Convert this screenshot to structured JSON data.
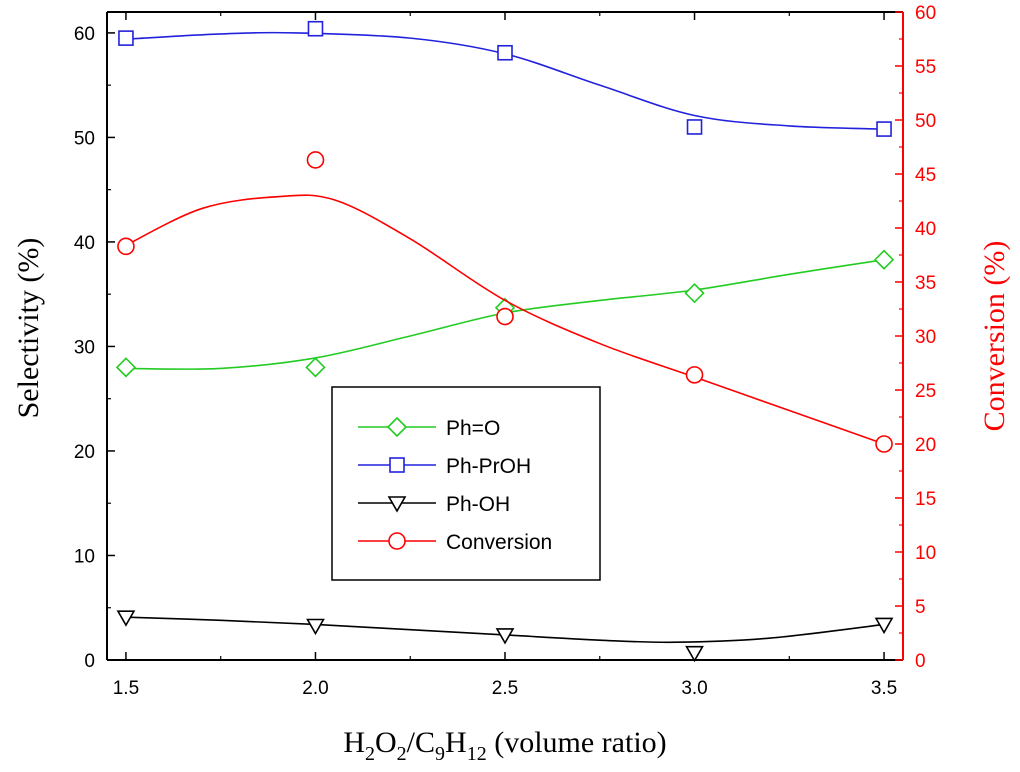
{
  "chart_data": {
    "type": "line",
    "x": [
      1.5,
      2.0,
      2.5,
      3.0,
      3.5
    ],
    "x_ticks": [
      "1.5",
      "2.0",
      "2.5",
      "3.0",
      "3.5"
    ],
    "xlim": [
      1.45,
      3.55
    ],
    "xlabel": {
      "parts": [
        {
          "t": "H",
          "sub": false
        },
        {
          "t": "2",
          "sub": true
        },
        {
          "t": "O",
          "sub": false
        },
        {
          "t": "2",
          "sub": true
        },
        {
          "t": "/C",
          "sub": false
        },
        {
          "t": "9",
          "sub": true
        },
        {
          "t": "H",
          "sub": false
        },
        {
          "t": "12",
          "sub": true
        },
        {
          "t": "  (volume ratio)",
          "sub": false
        }
      ]
    },
    "y_left": {
      "label": "Selectivity (%)",
      "ylim": [
        0,
        62
      ],
      "ticks": [
        0,
        10,
        20,
        30,
        40,
        50,
        60
      ],
      "color": "#000000"
    },
    "y_right": {
      "label": "Conversion (%)",
      "ylim": [
        0,
        60
      ],
      "ticks": [
        0,
        5,
        10,
        15,
        20,
        25,
        30,
        35,
        40,
        45,
        50,
        55,
        60
      ],
      "color": "#ff0000"
    },
    "series": [
      {
        "name": "Ph=O",
        "axis": "left",
        "marker": "diamond",
        "color": "#22cc22",
        "values": [
          28.0,
          28.0,
          33.7,
          35.1,
          38.3
        ],
        "fit": [
          [
            1.5,
            27.9
          ],
          [
            1.75,
            27.9
          ],
          [
            2.0,
            28.9
          ],
          [
            2.25,
            31.0
          ],
          [
            2.5,
            33.2
          ],
          [
            2.75,
            34.4
          ],
          [
            3.0,
            35.4
          ],
          [
            3.25,
            36.9
          ],
          [
            3.5,
            38.3
          ]
        ]
      },
      {
        "name": "Ph-PrOH",
        "axis": "left",
        "marker": "square",
        "color": "#2222dd",
        "values": [
          59.5,
          60.4,
          58.1,
          51.0,
          50.8
        ],
        "fit": [
          [
            1.5,
            59.4
          ],
          [
            1.75,
            59.9
          ],
          [
            1.95,
            60.0
          ],
          [
            2.25,
            59.5
          ],
          [
            2.5,
            58.0
          ],
          [
            2.75,
            55.0
          ],
          [
            3.0,
            52.1
          ],
          [
            3.25,
            51.1
          ],
          [
            3.5,
            50.8
          ]
        ]
      },
      {
        "name": "Ph-OH",
        "axis": "left",
        "marker": "triangle-down",
        "color": "#000000",
        "values": [
          4.1,
          3.3,
          2.4,
          0.7,
          3.4
        ],
        "fit": [
          [
            1.5,
            4.1
          ],
          [
            1.75,
            3.8
          ],
          [
            2.0,
            3.4
          ],
          [
            2.25,
            2.9
          ],
          [
            2.5,
            2.4
          ],
          [
            2.75,
            1.9
          ],
          [
            2.95,
            1.7
          ],
          [
            3.2,
            2.1
          ],
          [
            3.5,
            3.4
          ]
        ]
      },
      {
        "name": "Conversion",
        "axis": "right",
        "marker": "circle",
        "color": "#ff0000",
        "values": [
          38.3,
          46.3,
          31.8,
          26.4,
          20.0
        ],
        "fit": [
          [
            1.5,
            38.4
          ],
          [
            1.7,
            41.8
          ],
          [
            1.9,
            42.9
          ],
          [
            2.05,
            42.6
          ],
          [
            2.25,
            39.0
          ],
          [
            2.5,
            33.3
          ],
          [
            2.75,
            29.3
          ],
          [
            3.0,
            26.2
          ],
          [
            3.25,
            23.1
          ],
          [
            3.5,
            20.0
          ]
        ]
      }
    ],
    "legend": {
      "placement": "center-left"
    }
  }
}
